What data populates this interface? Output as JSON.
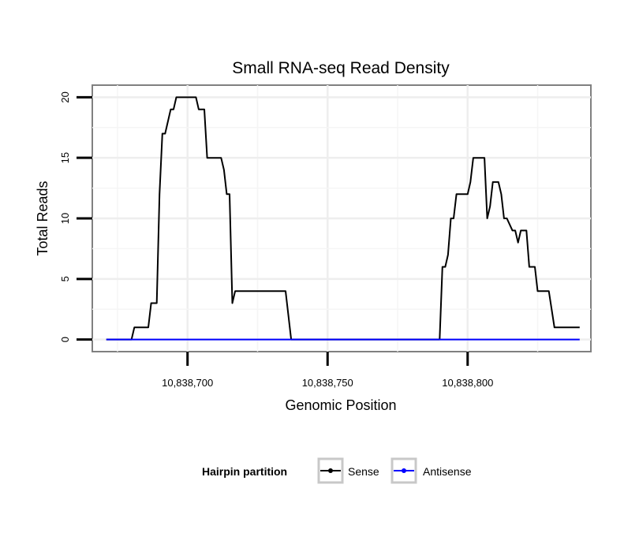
{
  "chart_data": {
    "type": "line",
    "title": "Small RNA-seq Read Density",
    "xlabel": "Genomic Position",
    "ylabel": "Total Reads",
    "xlim": [
      10838666,
      10838844
    ],
    "ylim": [
      -1,
      21
    ],
    "x_ticks": [
      10838700,
      10838750,
      10838800
    ],
    "x_tick_labels": [
      "10,838,700",
      "10,838,750",
      "10,838,800"
    ],
    "y_ticks": [
      0,
      5,
      10,
      15,
      20
    ],
    "y_tick_labels": [
      "0",
      "5",
      "10",
      "15",
      "20"
    ],
    "grid": true,
    "legend": {
      "title": "Hairpin partition",
      "position": "bottom",
      "entries": [
        {
          "name": "Sense",
          "color": "#000000"
        },
        {
          "name": "Antisense",
          "color": "#0000ff"
        }
      ]
    },
    "series": [
      {
        "name": "Sense",
        "color": "#000000",
        "x": [
          10838671,
          10838680,
          10838681,
          10838686,
          10838687,
          10838689,
          10838690,
          10838691,
          10838692,
          10838694,
          10838695,
          10838696,
          10838697,
          10838703,
          10838704,
          10838706,
          10838707,
          10838712,
          10838713,
          10838714,
          10838715,
          10838716,
          10838717,
          10838718,
          10838735,
          10838737,
          10838790,
          10838791,
          10838792,
          10838793,
          10838794,
          10838795,
          10838796,
          10838800,
          10838801,
          10838802,
          10838806,
          10838807,
          10838808,
          10838809,
          10838811,
          10838812,
          10838813,
          10838814,
          10838816,
          10838817,
          10838818,
          10838819,
          10838821,
          10838822,
          10838824,
          10838825,
          10838829,
          10838831,
          10838840
        ],
        "y": [
          0,
          0,
          1,
          1,
          3,
          3,
          12,
          17,
          17,
          19,
          19,
          20,
          20,
          20,
          19,
          19,
          15,
          15,
          14,
          12,
          12,
          3,
          4,
          4,
          4,
          0,
          0,
          6,
          6,
          7,
          10,
          10,
          12,
          12,
          13,
          15,
          15,
          10,
          11,
          13,
          13,
          12,
          10,
          10,
          9,
          9,
          8,
          9,
          9,
          6,
          6,
          4,
          4,
          1,
          1
        ]
      },
      {
        "name": "Antisense",
        "color": "#0000ff",
        "x": [
          10838671,
          10838840
        ],
        "y": [
          0,
          0
        ]
      }
    ]
  }
}
